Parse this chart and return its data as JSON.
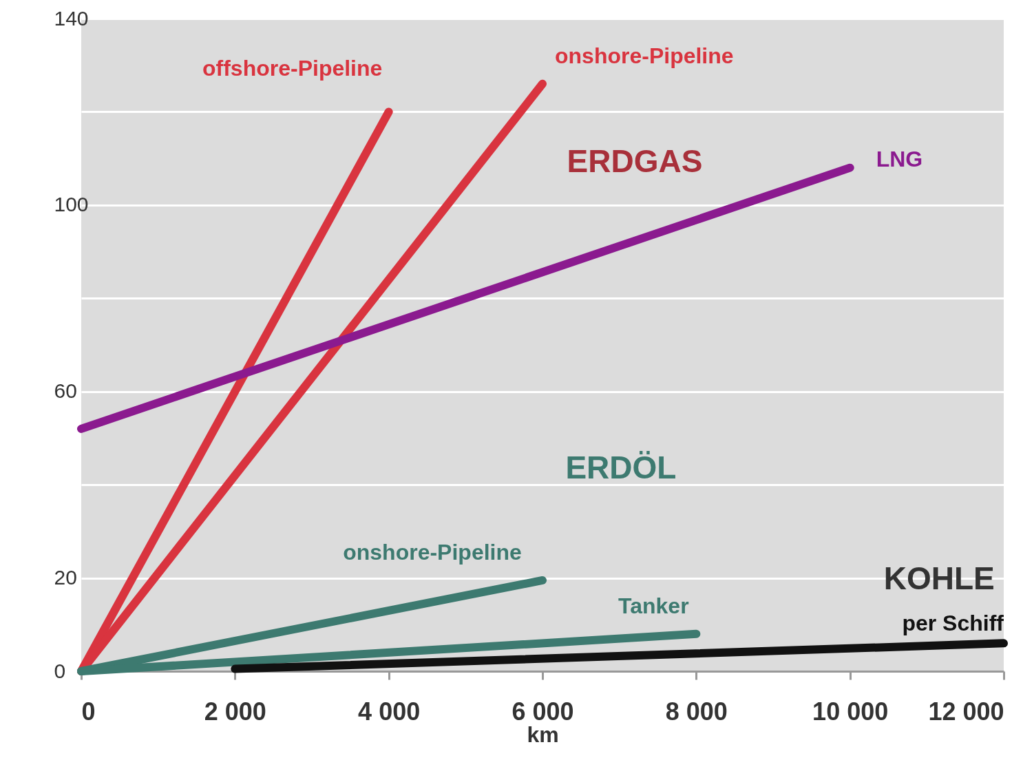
{
  "chart_data": {
    "type": "line",
    "xlabel": "km",
    "xlim": [
      0,
      12000
    ],
    "xticks": [
      0,
      {
        "value": 2000,
        "label": "2 000"
      },
      {
        "value": 4000,
        "label": "4 000"
      },
      {
        "value": 6000,
        "label": "6 000"
      },
      {
        "value": 8000,
        "label": "8 000"
      },
      {
        "value": 10000,
        "label": "10 000"
      },
      {
        "value": 12000,
        "label": "12 000"
      }
    ],
    "ylim": [
      0,
      140
    ],
    "yticks": [
      0,
      20,
      {
        "value": 40,
        "label": null
      },
      60,
      {
        "value": 80,
        "label": null
      },
      100,
      {
        "value": 120,
        "label": null
      },
      140
    ],
    "grid": "y",
    "legend": false,
    "series": [
      {
        "name": "offshore-Pipeline",
        "color": "#d9343f",
        "x": [
          0,
          4000
        ],
        "values": [
          0,
          120
        ]
      },
      {
        "name": "onshore-Pipeline",
        "color": "#d9343f",
        "x": [
          0,
          6000
        ],
        "values": [
          0,
          126
        ]
      },
      {
        "name": "LNG",
        "color": "#8b1a8f",
        "x": [
          0,
          10000
        ],
        "values": [
          52,
          108
        ]
      },
      {
        "name": "onshore-Pipeline",
        "color": "#3d7a70",
        "x": [
          0,
          6000
        ],
        "values": [
          0,
          19.5
        ]
      },
      {
        "name": "Tanker",
        "color": "#3d7a70",
        "x": [
          0,
          8000
        ],
        "values": [
          0,
          8
        ]
      },
      {
        "name": "per Schiff",
        "color": "#111111",
        "x": [
          2000,
          12000
        ],
        "values": [
          0.5,
          6
        ]
      }
    ],
    "annotations": [
      "ERDGAS",
      "ERDÖL",
      "KOHLE"
    ]
  }
}
